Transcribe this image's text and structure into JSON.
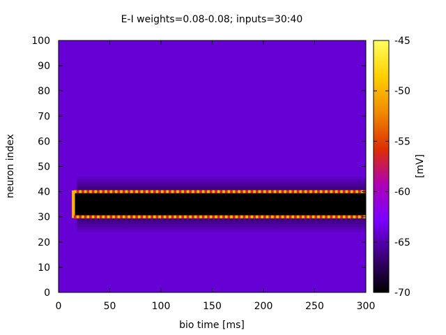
{
  "chart_data": {
    "type": "heatmap",
    "title": "E-I weights=0.08-0.08; inputs=30:40",
    "xlabel": "bio time [ms]",
    "ylabel": "neuron index",
    "xlim": [
      0,
      300
    ],
    "ylim": [
      0,
      100
    ],
    "x_ticks": [
      "0",
      "50",
      "100",
      "150",
      "200",
      "250",
      "300"
    ],
    "y_ticks": [
      "0",
      "10",
      "20",
      "30",
      "40",
      "50",
      "60",
      "70",
      "80",
      "90",
      "100"
    ],
    "colorbar": {
      "label": "[mV]",
      "range": [
        -70,
        -45
      ],
      "ticks": [
        "-45",
        "-50",
        "-55",
        "-60",
        "-65",
        "-70"
      ],
      "palette": [
        "#000000",
        "#3c0078",
        "#7a00ff",
        "#b000b5",
        "#dd3000",
        "#f08a00",
        "#ffcf00",
        "#ffff60"
      ]
    },
    "grid": false,
    "background_value_mV": -64,
    "stimulated_band": {
      "neuron_range": [
        30,
        40
      ],
      "start_time_ms": 15,
      "end_time_ms": 300,
      "interior_value_mV": -70,
      "edge_value_mV": -50,
      "halo_value_mV": -67,
      "halo_width_neurons": 6
    }
  }
}
